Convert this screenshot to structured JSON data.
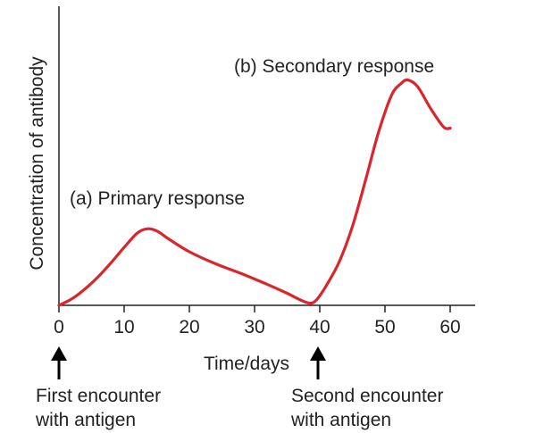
{
  "chart_data": {
    "type": "line",
    "title": "",
    "xlabel": "Time/days",
    "ylabel": "Concentration of antibody",
    "xlim": [
      0,
      64
    ],
    "ylim": [
      0,
      100
    ],
    "x_ticks": [
      0,
      10,
      20,
      30,
      40,
      50,
      60
    ],
    "x_tick_labels": [
      "0",
      "10",
      "20",
      "30",
      "40",
      "50",
      "60"
    ],
    "series": [
      {
        "name": "Antibody concentration",
        "color": "#d9262c",
        "x": [
          0,
          2,
          4,
          6,
          8,
          10,
          12,
          13.5,
          15,
          17,
          20,
          24,
          28,
          32,
          35,
          37,
          38.5,
          39.5,
          41,
          43,
          45,
          47,
          49,
          51,
          52.5,
          53.5,
          55,
          57,
          59,
          60
        ],
        "y": [
          0,
          3,
          7.5,
          13,
          19.5,
          26.5,
          33,
          35,
          34,
          30,
          24.5,
          19,
          14.5,
          9.5,
          5.5,
          2.5,
          1,
          2.5,
          9,
          20,
          36,
          57,
          79,
          96,
          101.5,
          103,
          100,
          90,
          81.5,
          81
        ]
      }
    ],
    "annotations": [
      {
        "id": "primary",
        "text": "(a) Primary response"
      },
      {
        "id": "secondary",
        "text": "(b) Secondary response"
      },
      {
        "id": "first_encounter",
        "lines": [
          "First encounter",
          "with antigen"
        ],
        "x": 0
      },
      {
        "id": "second_encounter",
        "lines": [
          "Second encounter",
          "with antigen"
        ],
        "x": 40
      }
    ],
    "grid": false,
    "legend": "none"
  }
}
